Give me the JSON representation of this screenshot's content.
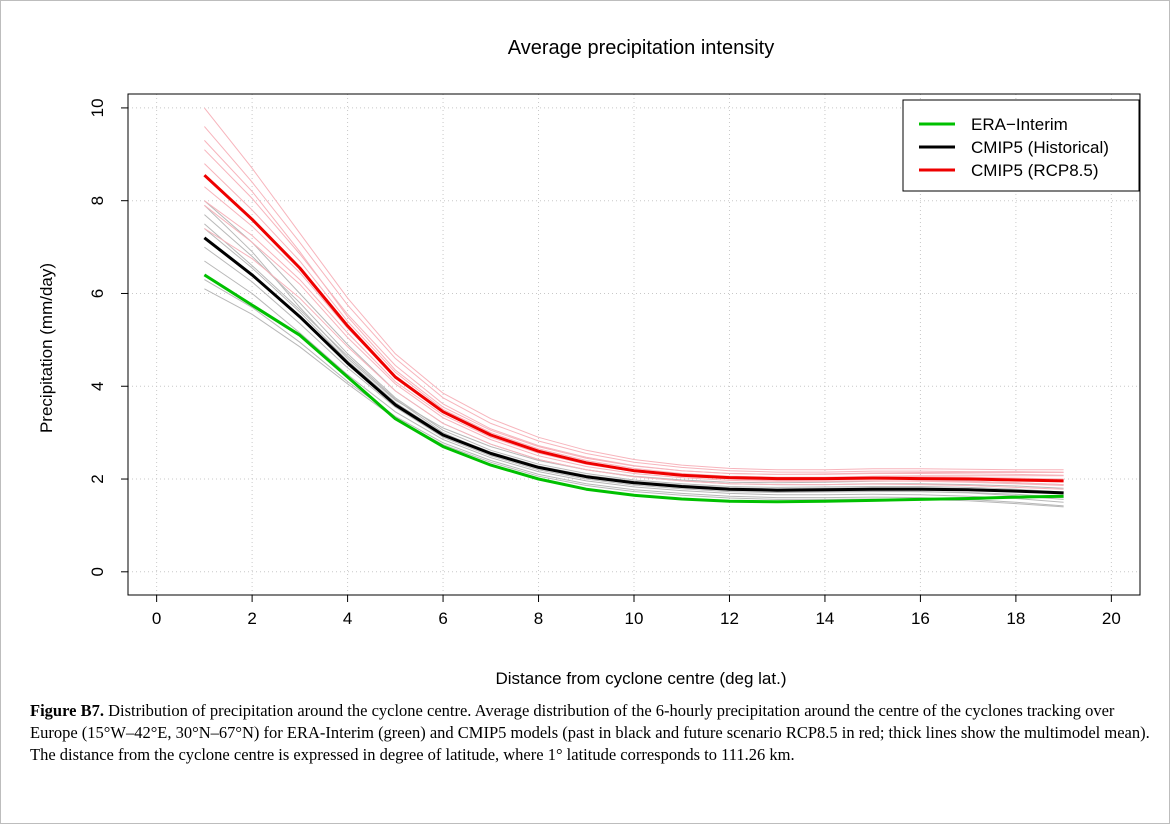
{
  "chart_data": {
    "type": "line",
    "title": "Average precipitation intensity",
    "xlabel": "Distance from cyclone centre (deg lat.)",
    "ylabel": "Precipitation (mm/day)",
    "xlim": [
      -0.6,
      20.6
    ],
    "ylim": [
      -0.5,
      10.3
    ],
    "xticks": [
      0,
      2,
      4,
      6,
      8,
      10,
      12,
      14,
      16,
      18,
      20
    ],
    "yticks": [
      0,
      2,
      4,
      6,
      8,
      10
    ],
    "grid": true,
    "legend_position": "top-right",
    "x": [
      1,
      2,
      3,
      4,
      5,
      6,
      7,
      8,
      9,
      10,
      11,
      12,
      13,
      14,
      15,
      16,
      17,
      18,
      19
    ],
    "series": [
      {
        "name": "ERA−Interim",
        "color": "#00c000",
        "width": 3,
        "values": [
          6.4,
          5.75,
          5.1,
          4.2,
          3.3,
          2.7,
          2.3,
          2.0,
          1.78,
          1.65,
          1.57,
          1.52,
          1.51,
          1.52,
          1.54,
          1.56,
          1.58,
          1.61,
          1.63
        ]
      },
      {
        "name": "CMIP5 (Historical)",
        "color": "#000000",
        "width": 3,
        "values": [
          7.2,
          6.4,
          5.5,
          4.5,
          3.6,
          2.95,
          2.55,
          2.25,
          2.05,
          1.92,
          1.84,
          1.78,
          1.76,
          1.77,
          1.78,
          1.78,
          1.77,
          1.74,
          1.7
        ]
      },
      {
        "name": "CMIP5 (RCP8.5)",
        "color": "#ee0000",
        "width": 3,
        "values": [
          8.55,
          7.6,
          6.55,
          5.3,
          4.2,
          3.45,
          2.95,
          2.6,
          2.35,
          2.18,
          2.08,
          2.03,
          2.01,
          2.01,
          2.02,
          2.01,
          2.0,
          1.98,
          1.96
        ]
      }
    ],
    "model_spread": [
      {
        "group": "historical",
        "color": "#b8b8b8",
        "members": [
          [
            8.0,
            7.1,
            6.0,
            4.9,
            3.9,
            3.2,
            2.75,
            2.42,
            2.2,
            2.05,
            1.96,
            1.9,
            1.88,
            1.88,
            1.9,
            1.9,
            1.88,
            1.85,
            1.8
          ],
          [
            7.7,
            6.8,
            5.8,
            4.7,
            3.75,
            3.05,
            2.62,
            2.32,
            2.12,
            1.98,
            1.9,
            1.84,
            1.82,
            1.83,
            1.84,
            1.84,
            1.82,
            1.78,
            1.72
          ],
          [
            7.4,
            6.55,
            5.6,
            4.55,
            3.65,
            2.98,
            2.58,
            2.28,
            2.08,
            1.95,
            1.87,
            1.81,
            1.79,
            1.8,
            1.81,
            1.81,
            1.79,
            1.75,
            1.7
          ],
          [
            7.0,
            6.25,
            5.35,
            4.4,
            3.55,
            2.9,
            2.5,
            2.2,
            2.0,
            1.87,
            1.79,
            1.73,
            1.71,
            1.72,
            1.73,
            1.73,
            1.71,
            1.67,
            1.6
          ],
          [
            6.7,
            6.0,
            5.15,
            4.25,
            3.45,
            2.85,
            2.46,
            2.16,
            1.96,
            1.83,
            1.75,
            1.69,
            1.66,
            1.66,
            1.67,
            1.66,
            1.63,
            1.58,
            1.5
          ],
          [
            6.3,
            5.7,
            4.95,
            4.1,
            3.35,
            2.78,
            2.4,
            2.1,
            1.9,
            1.77,
            1.69,
            1.63,
            1.6,
            1.6,
            1.61,
            1.6,
            1.56,
            1.5,
            1.42
          ],
          [
            6.1,
            5.55,
            4.85,
            4.05,
            3.3,
            2.74,
            2.36,
            2.06,
            1.86,
            1.73,
            1.65,
            1.59,
            1.56,
            1.56,
            1.57,
            1.56,
            1.53,
            1.47,
            1.4
          ],
          [
            7.9,
            6.9,
            5.7,
            4.6,
            3.7,
            3.1,
            2.7,
            2.4,
            2.2,
            2.06,
            1.98,
            1.93,
            1.92,
            1.93,
            1.95,
            1.96,
            1.95,
            1.92,
            1.88
          ],
          [
            7.5,
            6.6,
            5.65,
            4.65,
            3.72,
            3.0,
            2.55,
            2.25,
            2.04,
            1.9,
            1.82,
            1.76,
            1.74,
            1.74,
            1.74,
            1.73,
            1.7,
            1.64,
            1.56
          ]
        ]
      },
      {
        "group": "rcp85",
        "color": "#f7b4bc",
        "members": [
          [
            10.0,
            8.7,
            7.3,
            5.9,
            4.7,
            3.85,
            3.3,
            2.9,
            2.62,
            2.42,
            2.3,
            2.23,
            2.2,
            2.2,
            2.22,
            2.22,
            2.21,
            2.2,
            2.2
          ],
          [
            9.6,
            8.4,
            7.1,
            5.75,
            4.6,
            3.75,
            3.2,
            2.82,
            2.55,
            2.36,
            2.25,
            2.18,
            2.15,
            2.15,
            2.17,
            2.17,
            2.16,
            2.16,
            2.15
          ],
          [
            9.1,
            8.05,
            6.85,
            5.55,
            4.45,
            3.62,
            3.08,
            2.72,
            2.47,
            2.29,
            2.18,
            2.12,
            2.1,
            2.1,
            2.12,
            2.12,
            2.11,
            2.1,
            2.08
          ],
          [
            8.3,
            7.45,
            6.45,
            5.25,
            4.2,
            3.45,
            2.95,
            2.6,
            2.36,
            2.2,
            2.1,
            2.05,
            2.03,
            2.03,
            2.05,
            2.05,
            2.04,
            2.02,
            2.0
          ],
          [
            7.9,
            7.1,
            6.2,
            5.05,
            4.05,
            3.32,
            2.85,
            2.5,
            2.27,
            2.12,
            2.03,
            1.97,
            1.95,
            1.95,
            1.96,
            1.96,
            1.95,
            1.92,
            1.88
          ],
          [
            7.4,
            6.75,
            5.9,
            4.85,
            3.9,
            3.2,
            2.75,
            2.42,
            2.2,
            2.05,
            1.96,
            1.9,
            1.88,
            1.88,
            1.89,
            1.88,
            1.86,
            1.82,
            1.78
          ],
          [
            9.3,
            8.2,
            6.9,
            5.5,
            4.35,
            3.55,
            3.05,
            2.7,
            2.45,
            2.28,
            2.18,
            2.12,
            2.1,
            2.11,
            2.13,
            2.14,
            2.14,
            2.14,
            2.14
          ],
          [
            8.8,
            7.8,
            6.7,
            5.4,
            4.3,
            3.5,
            3.0,
            2.65,
            2.4,
            2.23,
            2.12,
            2.06,
            2.04,
            2.04,
            2.06,
            2.07,
            2.07,
            2.07,
            2.07
          ],
          [
            8.0,
            7.25,
            6.3,
            5.15,
            4.1,
            3.38,
            2.9,
            2.56,
            2.32,
            2.16,
            2.06,
            2.0,
            1.97,
            1.96,
            1.96,
            1.95,
            1.93,
            1.9,
            1.86
          ]
        ]
      }
    ]
  },
  "caption": {
    "label": "Figure B7.",
    "text": " Distribution of precipitation around the cyclone centre. Average distribution of the 6-hourly precipitation around the centre of the cyclones tracking over Europe (15°W–42°E, 30°N–67°N) for ERA-Interim (green) and CMIP5 models (past in black and future scenario RCP8.5 in red; thick lines show the multimodel mean). The distance from the cyclone centre is expressed in degree of latitude, where 1° latitude corresponds to 111.26 km."
  }
}
